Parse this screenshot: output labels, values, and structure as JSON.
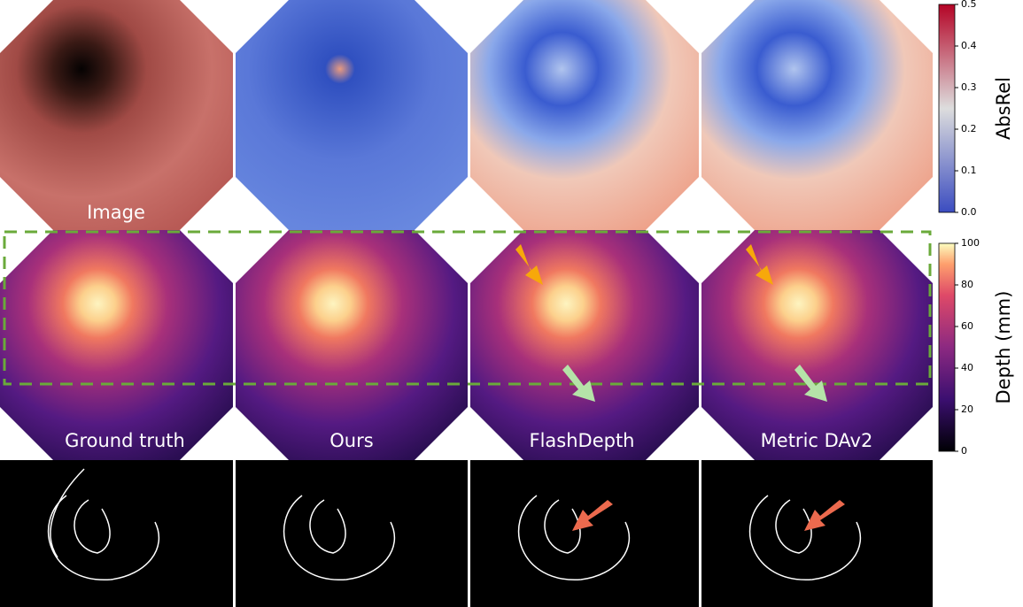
{
  "panels": {
    "captions": [
      "Image",
      "Ground truth",
      "Ours",
      "FlashDepth",
      "Metric DAv2"
    ]
  },
  "colorbars": [
    {
      "label": "AbsRel",
      "lim": [
        0,
        0.5
      ],
      "ticks": [
        {
          "value": 0,
          "label": "0.0"
        },
        {
          "value": 0.1,
          "label": "0.1"
        },
        {
          "value": 0.2,
          "label": "0.2"
        },
        {
          "value": 0.3,
          "label": "0.3"
        },
        {
          "value": 0.4,
          "label": "0.4"
        },
        {
          "value": 0.5,
          "label": "0.5"
        }
      ]
    },
    {
      "label": "Depth (mm)",
      "lim": [
        0,
        100
      ],
      "ticks": [
        0,
        20,
        40,
        60,
        80,
        100
      ]
    }
  ]
}
